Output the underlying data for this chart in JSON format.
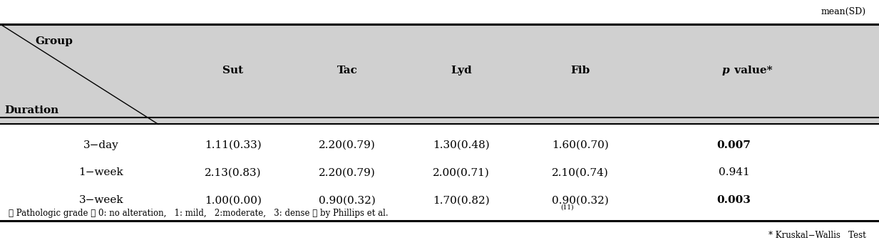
{
  "title_right": "mean(SD)",
  "col_headers": [
    "Sut",
    "Tac",
    "Lyd",
    "Fib"
  ],
  "pval_header": "p value*",
  "header_split_top": "Group",
  "header_split_bottom": "Duration",
  "rows": [
    {
      "duration": "3−day",
      "vals": [
        "1.11(0.33)",
        "2.20(0.79)",
        "1.30(0.48)",
        "1.60(0.70)"
      ],
      "pval": "0.007",
      "pval_bold": true
    },
    {
      "duration": "1−week",
      "vals": [
        "2.13(0.83)",
        "2.20(0.79)",
        "2.00(0.71)",
        "2.10(0.74)"
      ],
      "pval": "0.941",
      "pval_bold": false
    },
    {
      "duration": "3−week",
      "vals": [
        "1.00(0.00)",
        "0.90(0.32)",
        "1.70(0.82)",
        "0.90(0.32)"
      ],
      "pval": "0.003",
      "pval_bold": true
    }
  ],
  "footnote1_prefix": "※ Pathologic grade （ 0: no alteration,   1: mild,   2:moderate,   3: dense ） by Phillips et al.",
  "footnote1_superscript": "(11)",
  "footnote2": "* Kruskal−Wallis   Test",
  "header_bg": "#d0d0d0",
  "body_bg": "#ffffff",
  "fig_width": 12.33,
  "fig_height": 3.37,
  "dpi": 100
}
